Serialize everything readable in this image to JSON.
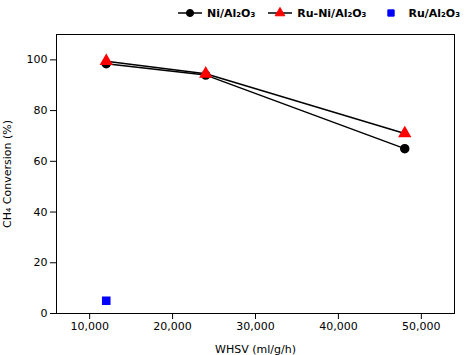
{
  "chart_data": {
    "type": "line",
    "xlabel": "WHSV (ml/g/h)",
    "ylabel": "CH₄ Conversion (%)",
    "series": [
      {
        "name": "Ni/Al₂O₃",
        "type": "line",
        "color": "black",
        "marker": "circle",
        "line_style": "solid",
        "x": [
          12000,
          24000,
          48000
        ],
        "values": [
          98.5,
          94.0,
          65.0
        ]
      },
      {
        "name": "Ru-Ni/Al₂O₃",
        "type": "line",
        "color": "red",
        "marker": "triangle",
        "line_style": "solid",
        "x": [
          12000,
          24000,
          48000
        ],
        "values": [
          99.5,
          94.5,
          71.0
        ]
      },
      {
        "name": "Ru/Al₂O₃",
        "type": "scatter",
        "color": "blue",
        "marker": "square",
        "line_style": "none",
        "x": [
          12000
        ],
        "values": [
          5.0
        ]
      }
    ],
    "xlim": [
      6000,
      54000
    ],
    "ylim": [
      0,
      110
    ],
    "xticks": [
      {
        "value": 10000,
        "label": "10,000"
      },
      {
        "value": 20000,
        "label": "20,000"
      },
      {
        "value": 30000,
        "label": "30,000"
      },
      {
        "value": 40000,
        "label": "40,000"
      },
      {
        "value": 50000,
        "label": "50,000"
      }
    ],
    "yticks": [
      0,
      20,
      40,
      60,
      80,
      100
    ],
    "legend": "upper right"
  }
}
